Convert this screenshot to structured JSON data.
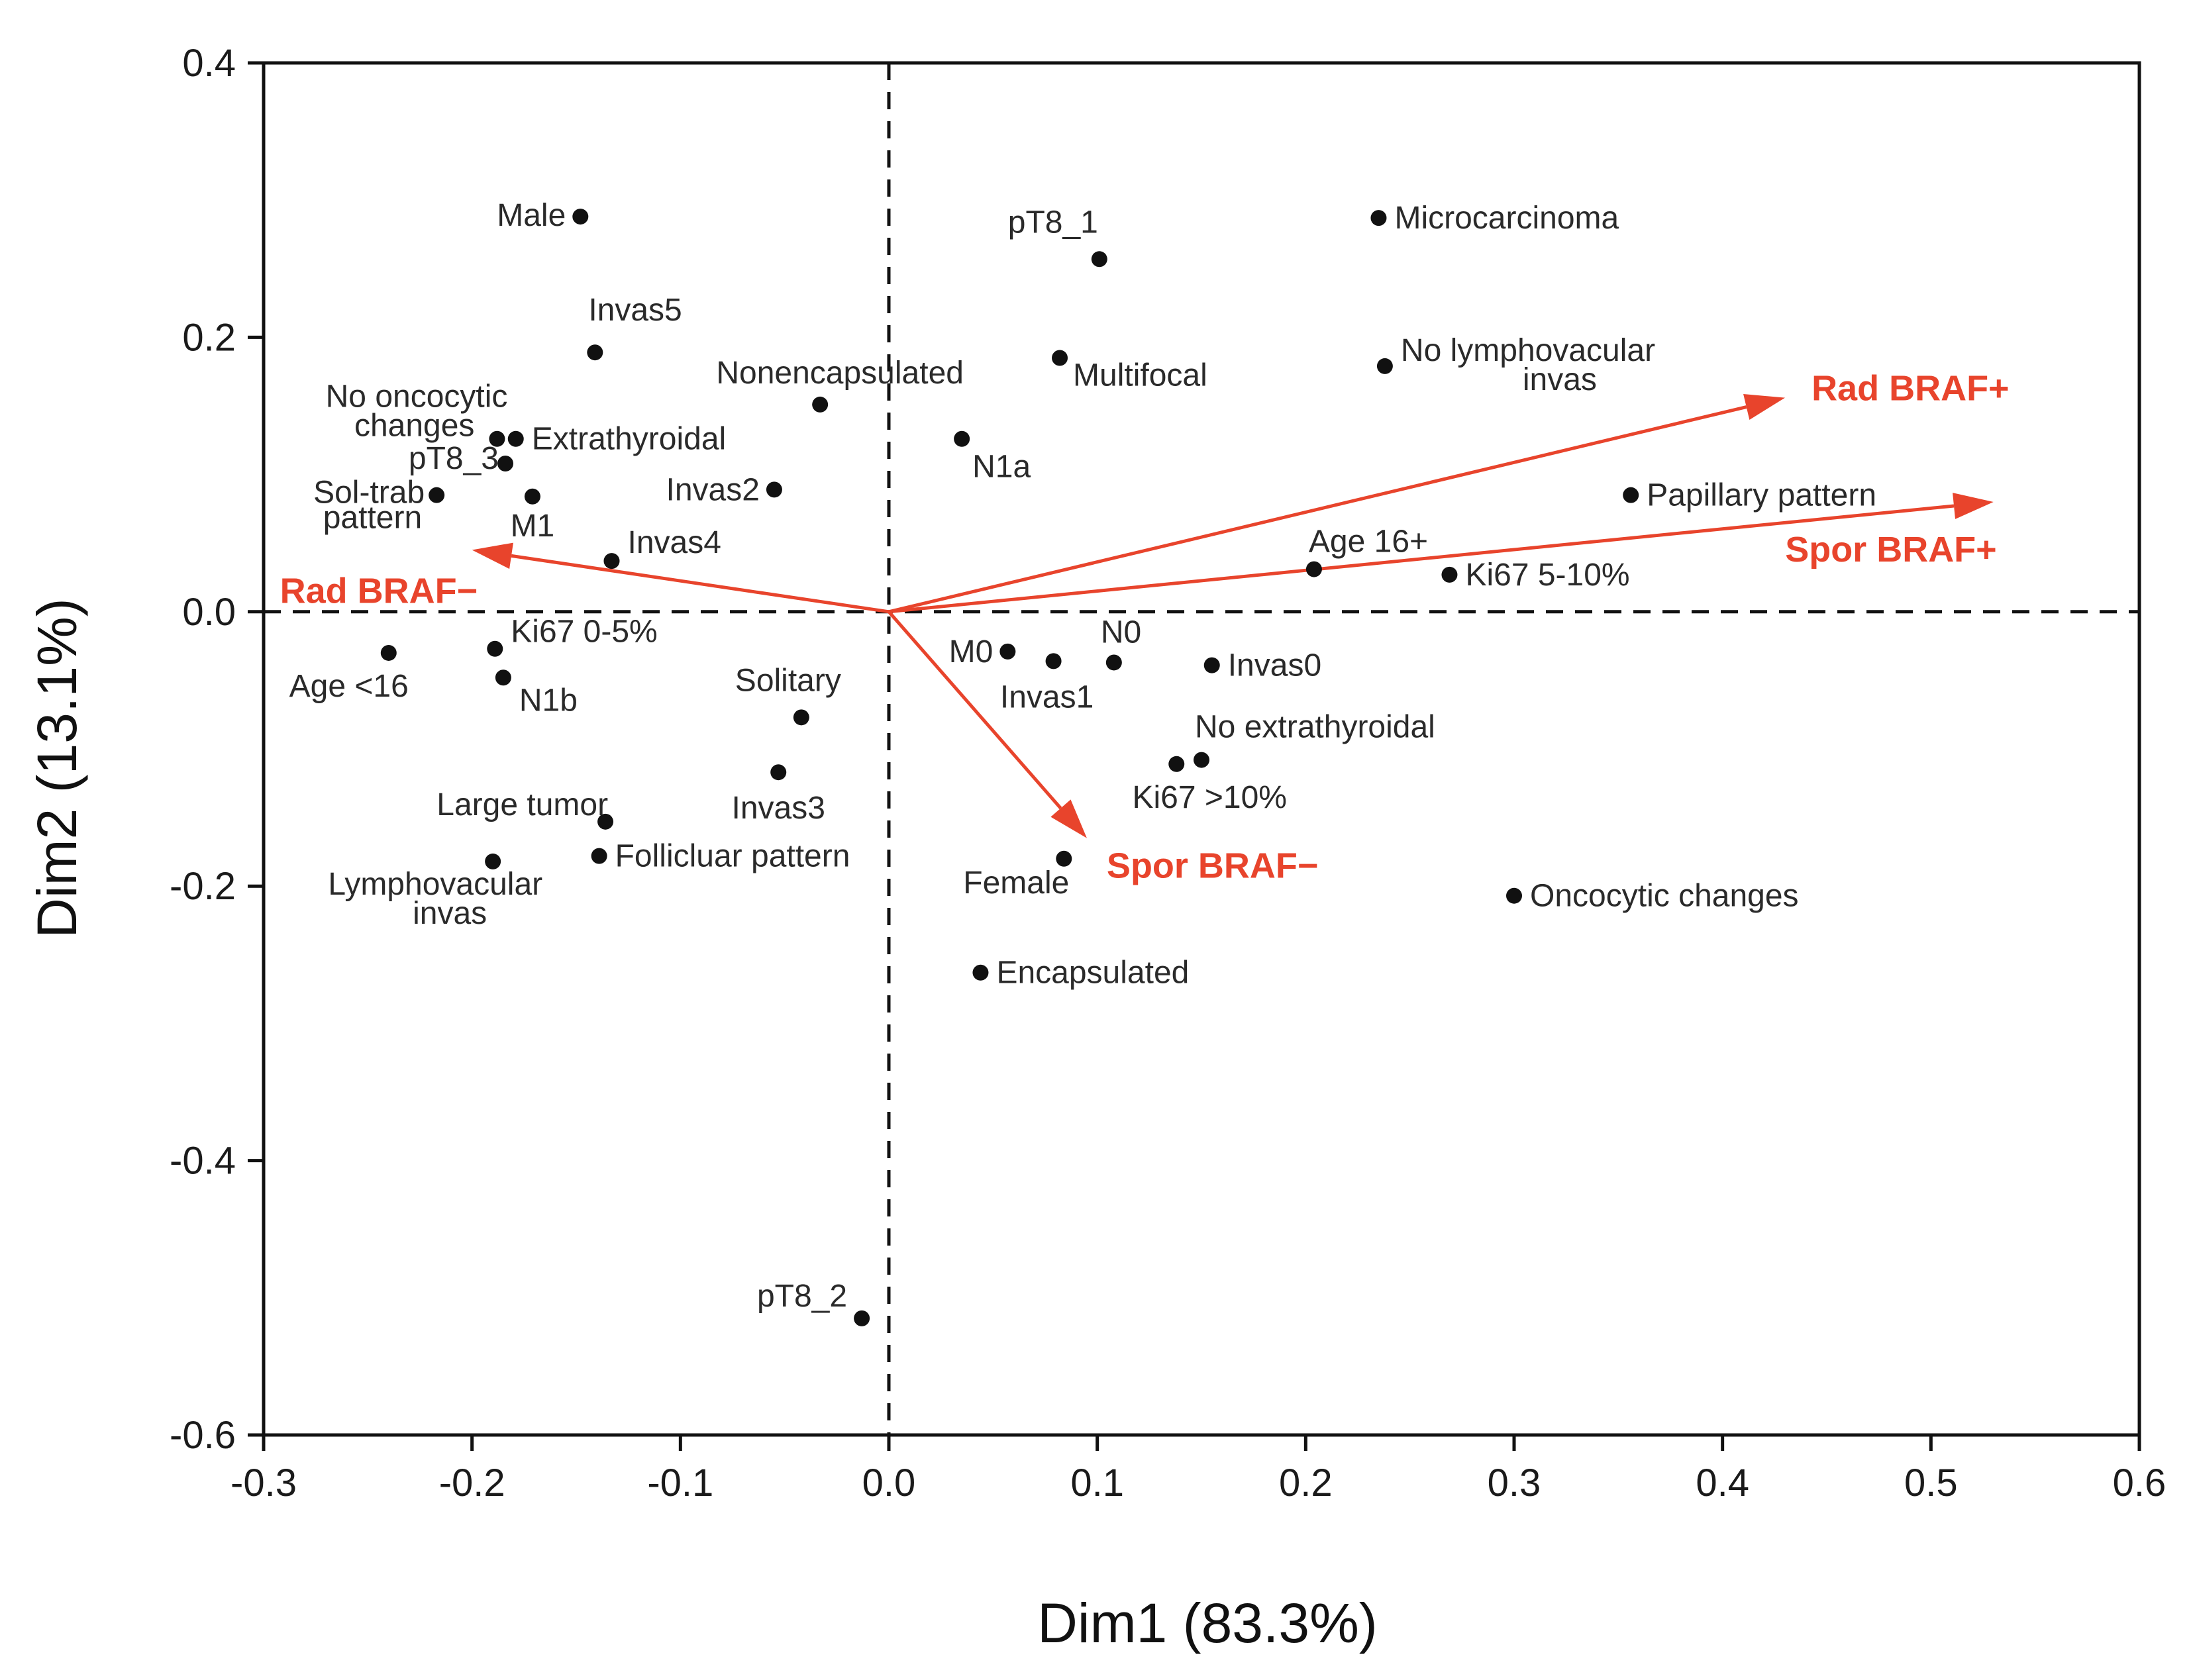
{
  "chart_data": {
    "type": "scatter",
    "xlabel": "Dim1 (83.3%)",
    "ylabel": "Dim2 (13.1%)",
    "xlim": [
      -0.3,
      0.6
    ],
    "ylim": [
      -0.6,
      0.4
    ],
    "x_ticks": [
      "-0.3",
      "-0.2",
      "-0.1",
      "0.0",
      "0.1",
      "0.2",
      "0.3",
      "0.4",
      "0.5",
      "0.6"
    ],
    "y_ticks": [
      "0.4",
      "0.2",
      "0.0",
      "-0.2",
      "-0.4",
      "-0.6"
    ],
    "grid": false,
    "reference_lines": {
      "x": 0.0,
      "y": 0.0,
      "style": "dashed"
    },
    "arrow_color": "#e8442c",
    "point_color": "#111111",
    "points": [
      {
        "label": "Male",
        "x": -0.148,
        "y": 0.288,
        "anchor": "end"
      },
      {
        "label": "pT8_1",
        "x": 0.101,
        "y": 0.257,
        "anchor": "end"
      },
      {
        "label": "Microcarcinoma",
        "x": 0.235,
        "y": 0.287,
        "anchor": "start"
      },
      {
        "label": "Invas5",
        "x": -0.141,
        "y": 0.189,
        "anchor": "start"
      },
      {
        "label": "Nonencapsulated",
        "x": -0.033,
        "y": 0.151,
        "anchor": "middle"
      },
      {
        "label": "Multifocal",
        "x": 0.082,
        "y": 0.185,
        "anchor": "start"
      },
      {
        "label": "No lymphovacular",
        "label2": "invas",
        "x": 0.238,
        "y": 0.179,
        "anchor": "start"
      },
      {
        "label": "No oncocytic",
        "label2": "changes",
        "x": -0.188,
        "y": 0.126,
        "anchor": "end"
      },
      {
        "label": "Extrathyroidal",
        "x": -0.179,
        "y": 0.126,
        "anchor": "start"
      },
      {
        "label": "pT8_3",
        "x": -0.184,
        "y": 0.108,
        "anchor": "end"
      },
      {
        "label": "N1a",
        "x": 0.035,
        "y": 0.126,
        "anchor": "start"
      },
      {
        "label": "Invas2",
        "x": -0.055,
        "y": 0.089,
        "anchor": "end"
      },
      {
        "label": "Sol-trab",
        "label2": "pattern",
        "x": -0.217,
        "y": 0.085,
        "anchor": "end"
      },
      {
        "label": "M1",
        "x": -0.171,
        "y": 0.084,
        "anchor": "middle"
      },
      {
        "label": "Papillary pattern",
        "x": 0.356,
        "y": 0.085,
        "anchor": "start"
      },
      {
        "label": "Invas4",
        "x": -0.133,
        "y": 0.037,
        "anchor": "start"
      },
      {
        "label": "Age 16+",
        "x": 0.204,
        "y": 0.031,
        "anchor": "start"
      },
      {
        "label": "Ki67 5-10%",
        "x": 0.269,
        "y": 0.027,
        "anchor": "start"
      },
      {
        "label": "Age <16",
        "x": -0.24,
        "y": -0.03,
        "anchor": "end"
      },
      {
        "label": "Ki67 0-5%",
        "x": -0.189,
        "y": -0.027,
        "anchor": "start"
      },
      {
        "label": "N1b",
        "x": -0.185,
        "y": -0.048,
        "anchor": "start"
      },
      {
        "label": "M0",
        "x": 0.057,
        "y": -0.029,
        "anchor": "end"
      },
      {
        "label": "Invas1",
        "x": 0.079,
        "y": -0.036,
        "anchor": "middle"
      },
      {
        "label": "N0",
        "x": 0.108,
        "y": -0.037,
        "anchor": "start"
      },
      {
        "label": "Invas0",
        "x": 0.155,
        "y": -0.039,
        "anchor": "start"
      },
      {
        "label": "Solitary",
        "x": -0.042,
        "y": -0.077,
        "anchor": "middle"
      },
      {
        "label": "No extrathyroidal",
        "x": 0.15,
        "y": -0.108,
        "anchor": "start"
      },
      {
        "label": "Ki67 >10%",
        "x": 0.138,
        "y": -0.111,
        "anchor": "middle"
      },
      {
        "label": "Invas3",
        "x": -0.053,
        "y": -0.117,
        "anchor": "middle"
      },
      {
        "label": "Large tumor",
        "x": -0.136,
        "y": -0.153,
        "anchor": "end"
      },
      {
        "label": "Follicluar pattern",
        "x": -0.139,
        "y": -0.178,
        "anchor": "start"
      },
      {
        "label": "Lymphovacular",
        "label2": "invas",
        "x": -0.19,
        "y": -0.182,
        "anchor": "end"
      },
      {
        "label": "Female",
        "x": 0.084,
        "y": -0.18,
        "anchor": "end"
      },
      {
        "label": "Oncocytic changes",
        "x": 0.3,
        "y": -0.207,
        "anchor": "start"
      },
      {
        "label": "Encapsulated",
        "x": 0.044,
        "y": -0.263,
        "anchor": "start"
      },
      {
        "label": "pT8_2",
        "x": -0.013,
        "y": -0.515,
        "anchor": "end"
      }
    ],
    "arrows": [
      {
        "label": "Rad BRAF+",
        "x": 0.43,
        "y": 0.156
      },
      {
        "label": "Spor BRAF+",
        "x": 0.53,
        "y": 0.08
      },
      {
        "label": "Rad BRAF−",
        "x": -0.2,
        "y": 0.045
      },
      {
        "label": "Spor BRAF−",
        "x": 0.095,
        "y": -0.165
      }
    ]
  }
}
